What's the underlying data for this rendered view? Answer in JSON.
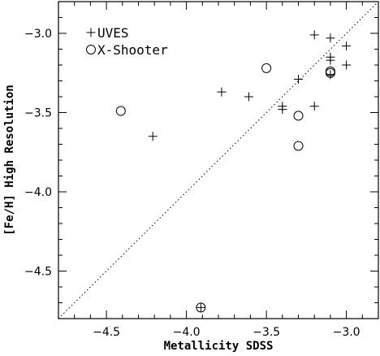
{
  "chart_data": {
    "type": "scatter",
    "xlabel": "Metallicity  SDSS",
    "ylabel": "[Fe/H]  High  Resolution",
    "xlim": [
      -4.8,
      -2.8
    ],
    "ylim": [
      -4.8,
      -2.8
    ],
    "x_ticks": [
      -4.5,
      -4.0,
      -3.5,
      -3.0
    ],
    "y_ticks": [
      -4.5,
      -4.0,
      -3.5,
      -3.0
    ],
    "x_tick_labels": [
      "−4.5",
      "−4.0",
      "−3.5",
      "−3.0"
    ],
    "y_tick_labels": [
      "−4.5",
      "−4.0",
      "−3.5",
      "−3.0"
    ],
    "minor_tick_step": 0.1,
    "reference_line": "one-to-one (dotted)",
    "legend_position": "top-left",
    "series": [
      {
        "name": "UVES",
        "marker": "plus",
        "points": [
          {
            "x": -4.21,
            "y": -3.65
          },
          {
            "x": -3.91,
            "y": -4.73
          },
          {
            "x": -3.78,
            "y": -3.37
          },
          {
            "x": -3.61,
            "y": -3.4
          },
          {
            "x": -3.4,
            "y": -3.48
          },
          {
            "x": -3.4,
            "y": -3.46
          },
          {
            "x": -3.3,
            "y": -3.29
          },
          {
            "x": -3.2,
            "y": -3.01
          },
          {
            "x": -3.2,
            "y": -3.46
          },
          {
            "x": -3.1,
            "y": -3.03
          },
          {
            "x": -3.1,
            "y": -3.15
          },
          {
            "x": -3.1,
            "y": -3.17
          },
          {
            "x": -3.1,
            "y": -3.26
          },
          {
            "x": -3.0,
            "y": -3.08
          },
          {
            "x": -3.0,
            "y": -3.2
          }
        ]
      },
      {
        "name": "X-Shooter",
        "marker": "circle",
        "points": [
          {
            "x": -4.41,
            "y": -3.49
          },
          {
            "x": -3.91,
            "y": -4.73
          },
          {
            "x": -3.5,
            "y": -3.22
          },
          {
            "x": -3.3,
            "y": -3.52
          },
          {
            "x": -3.3,
            "y": -3.71
          },
          {
            "x": -3.1,
            "y": -3.24
          },
          {
            "x": -3.1,
            "y": -3.25
          }
        ]
      }
    ]
  }
}
